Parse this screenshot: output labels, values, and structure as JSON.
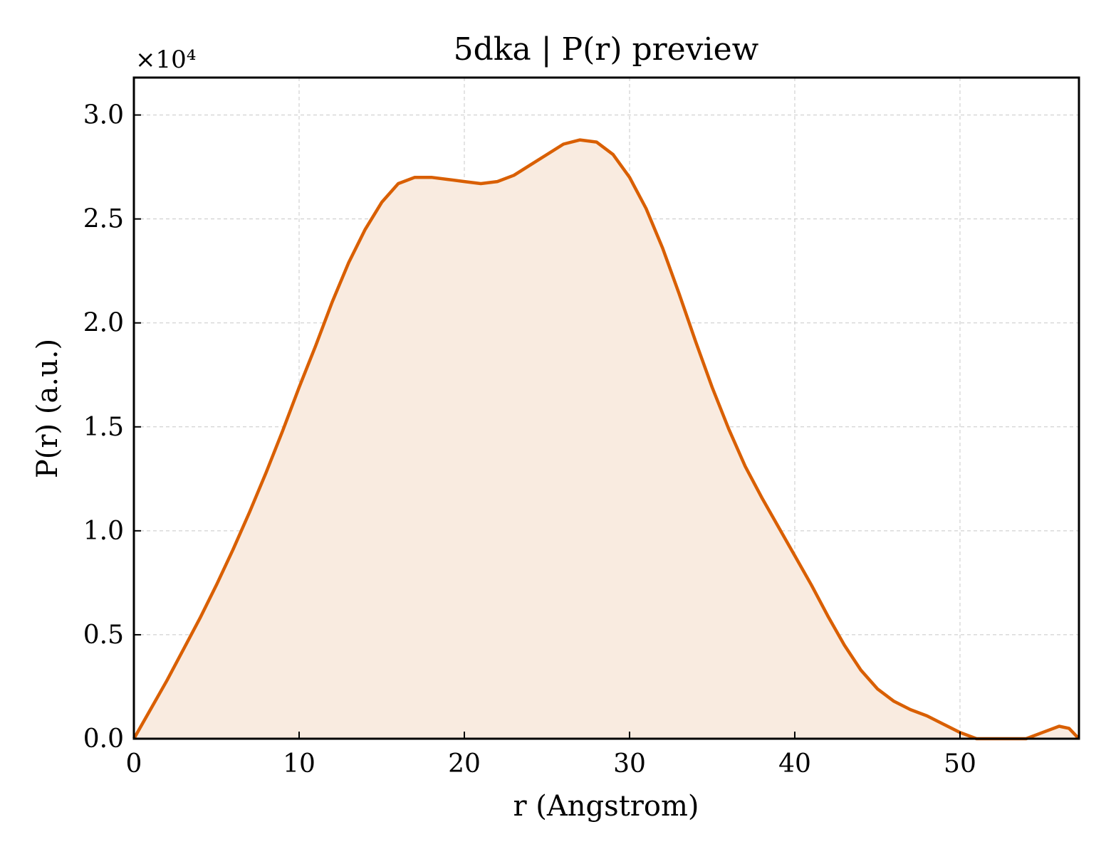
{
  "chart_data": {
    "type": "area",
    "title": "5dka | P(r) preview",
    "xlabel": "r (Angstrom)",
    "ylabel": "P(r) (a.u.)",
    "y_offset_label": "×10⁴",
    "y_multiplier": 10000,
    "xlim": [
      0,
      57.2
    ],
    "ylim": [
      0,
      31800
    ],
    "grid": true,
    "x_ticks": [
      0,
      10,
      20,
      30,
      40,
      50
    ],
    "x_tick_labels": [
      "0",
      "10",
      "20",
      "30",
      "40",
      "50"
    ],
    "y_ticks": [
      0,
      5000,
      10000,
      15000,
      20000,
      25000,
      30000
    ],
    "y_tick_labels": [
      "0.0",
      "0.5",
      "1.0",
      "1.5",
      "2.0",
      "2.5",
      "3.0"
    ],
    "line_color": "#d95f02",
    "fill_color": "#f9ebe0",
    "series": [
      {
        "x": [
          0,
          1,
          2,
          3,
          4,
          5,
          6,
          7,
          8,
          9,
          10,
          11,
          12,
          13,
          14,
          15,
          16,
          17,
          18,
          19,
          20,
          21,
          22,
          23,
          24,
          25,
          26,
          27,
          28,
          29,
          30,
          31,
          32,
          33,
          34,
          35,
          36,
          37,
          38,
          39,
          40,
          41,
          42,
          43,
          44,
          45,
          46,
          47,
          48,
          49,
          50,
          51,
          52,
          53,
          54,
          55,
          56,
          56.6,
          57.2
        ],
        "y": [
          0,
          1400,
          2800,
          4300,
          5800,
          7400,
          9100,
          10900,
          12800,
          14800,
          16900,
          18900,
          21000,
          22900,
          24500,
          25800,
          26700,
          27000,
          27000,
          26900,
          26800,
          26700,
          26800,
          27100,
          27600,
          28100,
          28600,
          28800,
          28700,
          28100,
          27000,
          25500,
          23600,
          21400,
          19100,
          16900,
          14900,
          13100,
          11600,
          10200,
          8800,
          7400,
          5900,
          4500,
          3300,
          2400,
          1800,
          1400,
          1100,
          700,
          300,
          0,
          0,
          0,
          0,
          300,
          600,
          500,
          0
        ]
      }
    ]
  }
}
